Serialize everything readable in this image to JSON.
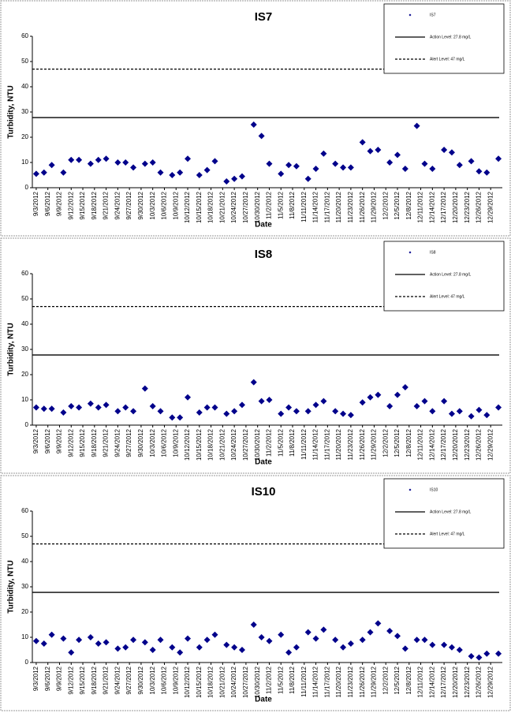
{
  "chart_data": [
    {
      "type": "scatter",
      "title": "IS7",
      "xlabel": "Date",
      "ylabel": "Turbidity, NTU",
      "xlim": [
        "9/2/2012",
        "1/1/2013"
      ],
      "ylim": [
        0,
        60
      ],
      "yticks": [
        0,
        10,
        20,
        30,
        40,
        50,
        60
      ],
      "xticks": [
        "9/3/2012",
        "9/6/2012",
        "9/9/2012",
        "9/12/2012",
        "9/15/2012",
        "9/18/2012",
        "9/21/2012",
        "9/24/2012",
        "9/27/2012",
        "9/30/2012",
        "10/3/2012",
        "10/6/2012",
        "10/9/2012",
        "10/12/2012",
        "10/15/2012",
        "10/18/2012",
        "10/21/2012",
        "10/24/2012",
        "10/27/2012",
        "10/30/2012",
        "11/2/2012",
        "11/5/2012",
        "11/8/2012",
        "11/11/2012",
        "11/14/2012",
        "11/17/2012",
        "11/20/2012",
        "11/23/2012",
        "11/26/2012",
        "11/29/2012",
        "12/2/2012",
        "12/5/2012",
        "12/8/2012",
        "12/11/2012",
        "12/14/2012",
        "12/17/2012",
        "12/20/2012",
        "12/23/2012",
        "12/26/2012",
        "12/29/2012"
      ],
      "x": [
        "9/3/2012",
        "9/5/2012",
        "9/7/2012",
        "9/10/2012",
        "9/12/2012",
        "9/14/2012",
        "9/17/2012",
        "9/19/2012",
        "9/21/2012",
        "9/24/2012",
        "9/26/2012",
        "9/28/2012",
        "10/1/2012",
        "10/3/2012",
        "10/5/2012",
        "10/8/2012",
        "10/10/2012",
        "10/12/2012",
        "10/15/2012",
        "10/17/2012",
        "10/19/2012",
        "10/22/2012",
        "10/24/2012",
        "10/26/2012",
        "10/29/2012",
        "10/31/2012",
        "11/2/2012",
        "11/5/2012",
        "11/7/2012",
        "11/9/2012",
        "11/12/2012",
        "11/14/2012",
        "11/16/2012",
        "11/19/2012",
        "11/21/2012",
        "11/23/2012",
        "11/26/2012",
        "11/28/2012",
        "11/30/2012",
        "12/3/2012",
        "12/5/2012",
        "12/7/2012",
        "12/10/2012",
        "12/12/2012",
        "12/14/2012",
        "12/17/2012",
        "12/19/2012",
        "12/21/2012",
        "12/24/2012",
        "12/26/2012",
        "12/28/2012",
        "12/31/2012"
      ],
      "series": [
        {
          "name": "IS7",
          "color": "#00008b",
          "values": [
            5.5,
            6,
            9,
            6,
            11,
            11,
            9.5,
            11,
            11.5,
            10,
            10,
            8,
            9.5,
            10,
            6,
            5,
            6,
            11.5,
            5,
            7,
            10.5,
            2.5,
            3.5,
            4.5,
            25,
            20.5,
            9.5,
            5.5,
            9,
            8.5,
            3.5,
            7.5,
            13.5,
            9.5,
            8,
            8,
            18,
            14.5,
            15,
            10,
            13,
            7.5,
            24.5,
            9.5,
            7.5,
            15,
            14,
            9,
            10.5,
            6.5,
            6,
            11.5
          ]
        }
      ],
      "lines": [
        {
          "name": "Action Level: 27.8 mg/L",
          "value": 27.8,
          "style": "solid"
        },
        {
          "name": "Alert Level: 47 mg/L",
          "value": 47,
          "style": "dashed"
        }
      ]
    },
    {
      "type": "scatter",
      "title": "IS8",
      "xlabel": "Date",
      "ylabel": "Turbidity, NTU",
      "xlim": [
        "9/2/2012",
        "1/1/2013"
      ],
      "ylim": [
        0,
        60
      ],
      "yticks": [
        0,
        10,
        20,
        30,
        40,
        50,
        60
      ],
      "xticks": [
        "9/3/2012",
        "9/6/2012",
        "9/9/2012",
        "9/12/2012",
        "9/15/2012",
        "9/18/2012",
        "9/21/2012",
        "9/24/2012",
        "9/27/2012",
        "9/30/2012",
        "10/3/2012",
        "10/6/2012",
        "10/9/2012",
        "10/12/2012",
        "10/15/2012",
        "10/18/2012",
        "10/21/2012",
        "10/24/2012",
        "10/27/2012",
        "10/30/2012",
        "11/2/2012",
        "11/5/2012",
        "11/8/2012",
        "11/11/2012",
        "11/14/2012",
        "11/17/2012",
        "11/20/2012",
        "11/23/2012",
        "11/26/2012",
        "11/29/2012",
        "12/2/2012",
        "12/5/2012",
        "12/8/2012",
        "12/11/2012",
        "12/14/2012",
        "12/17/2012",
        "12/20/2012",
        "12/23/2012",
        "12/26/2012",
        "12/29/2012"
      ],
      "x": [
        "9/3/2012",
        "9/5/2012",
        "9/7/2012",
        "9/10/2012",
        "9/12/2012",
        "9/14/2012",
        "9/17/2012",
        "9/19/2012",
        "9/21/2012",
        "9/24/2012",
        "9/26/2012",
        "9/28/2012",
        "10/1/2012",
        "10/3/2012",
        "10/5/2012",
        "10/8/2012",
        "10/10/2012",
        "10/12/2012",
        "10/15/2012",
        "10/17/2012",
        "10/19/2012",
        "10/22/2012",
        "10/24/2012",
        "10/26/2012",
        "10/29/2012",
        "10/31/2012",
        "11/2/2012",
        "11/5/2012",
        "11/7/2012",
        "11/9/2012",
        "11/12/2012",
        "11/14/2012",
        "11/16/2012",
        "11/19/2012",
        "11/21/2012",
        "11/23/2012",
        "11/26/2012",
        "11/28/2012",
        "11/30/2012",
        "12/3/2012",
        "12/5/2012",
        "12/7/2012",
        "12/10/2012",
        "12/12/2012",
        "12/14/2012",
        "12/17/2012",
        "12/19/2012",
        "12/21/2012",
        "12/24/2012",
        "12/26/2012",
        "12/28/2012",
        "12/31/2012"
      ],
      "series": [
        {
          "name": "IS8",
          "color": "#00008b",
          "values": [
            7,
            6.5,
            6.5,
            5,
            7.5,
            7,
            8.5,
            7,
            8,
            5.5,
            7,
            5.5,
            14.5,
            7.5,
            5.5,
            3,
            3,
            11,
            5,
            7,
            7,
            4.5,
            5.5,
            8,
            17,
            9.5,
            10,
            4.5,
            7,
            5.5,
            5.5,
            8,
            9.5,
            5.5,
            4.5,
            4,
            9,
            11,
            12,
            7.5,
            12,
            15,
            7.5,
            9.5,
            5.5,
            9.5,
            4.5,
            5.5,
            3.5,
            6,
            4,
            7
          ]
        }
      ],
      "lines": [
        {
          "name": "Action Level: 27.8 mg/L",
          "value": 27.8,
          "style": "solid"
        },
        {
          "name": "Alert Level: 47 mg/L",
          "value": 47,
          "style": "dashed"
        }
      ]
    },
    {
      "type": "scatter",
      "title": "IS10",
      "xlabel": "Date",
      "ylabel": "Turbidity, NTU",
      "xlim": [
        "9/2/2012",
        "1/1/2013"
      ],
      "ylim": [
        0,
        60
      ],
      "yticks": [
        0,
        10,
        20,
        30,
        40,
        50,
        60
      ],
      "xticks": [
        "9/3/2012",
        "9/6/2012",
        "9/9/2012",
        "9/12/2012",
        "9/15/2012",
        "9/18/2012",
        "9/21/2012",
        "9/24/2012",
        "9/27/2012",
        "9/30/2012",
        "10/3/2012",
        "10/6/2012",
        "10/9/2012",
        "10/12/2012",
        "10/15/2012",
        "10/18/2012",
        "10/21/2012",
        "10/24/2012",
        "10/27/2012",
        "10/30/2012",
        "11/2/2012",
        "11/5/2012",
        "11/8/2012",
        "11/11/2012",
        "11/14/2012",
        "11/17/2012",
        "11/20/2012",
        "11/23/2012",
        "11/26/2012",
        "11/29/2012",
        "12/2/2012",
        "12/5/2012",
        "12/8/2012",
        "12/11/2012",
        "12/14/2012",
        "12/17/2012",
        "12/20/2012",
        "12/23/2012",
        "12/26/2012",
        "12/29/2012"
      ],
      "x": [
        "9/3/2012",
        "9/5/2012",
        "9/7/2012",
        "9/10/2012",
        "9/12/2012",
        "9/14/2012",
        "9/17/2012",
        "9/19/2012",
        "9/21/2012",
        "9/24/2012",
        "9/26/2012",
        "9/28/2012",
        "10/1/2012",
        "10/3/2012",
        "10/5/2012",
        "10/8/2012",
        "10/10/2012",
        "10/12/2012",
        "10/15/2012",
        "10/17/2012",
        "10/19/2012",
        "10/22/2012",
        "10/24/2012",
        "10/26/2012",
        "10/29/2012",
        "10/31/2012",
        "11/2/2012",
        "11/5/2012",
        "11/7/2012",
        "11/9/2012",
        "11/12/2012",
        "11/14/2012",
        "11/16/2012",
        "11/19/2012",
        "11/21/2012",
        "11/23/2012",
        "11/26/2012",
        "11/28/2012",
        "11/30/2012",
        "12/3/2012",
        "12/5/2012",
        "12/7/2012",
        "12/10/2012",
        "12/12/2012",
        "12/14/2012",
        "12/17/2012",
        "12/19/2012",
        "12/21/2012",
        "12/24/2012",
        "12/26/2012",
        "12/28/2012",
        "12/31/2012"
      ],
      "series": [
        {
          "name": "IS10",
          "color": "#00008b",
          "values": [
            8.5,
            7.5,
            11,
            9.5,
            4,
            9,
            10,
            7.5,
            8,
            5.5,
            6,
            9,
            8,
            5,
            9,
            6,
            4,
            9.5,
            6,
            9,
            11,
            7,
            6,
            5,
            15,
            10,
            8.5,
            11,
            4,
            6,
            12,
            9.5,
            13,
            9,
            6,
            7.5,
            9,
            12,
            15.5,
            12.5,
            10.5,
            5.5,
            9,
            9,
            7,
            7,
            6,
            5,
            2.5,
            2,
            3.5,
            3.5
          ]
        }
      ],
      "lines": [
        {
          "name": "Action Level: 27.8 mg/L",
          "value": 27.8,
          "style": "solid"
        },
        {
          "name": "Alert Level: 47 mg/L",
          "value": 47,
          "style": "dashed"
        }
      ]
    }
  ]
}
